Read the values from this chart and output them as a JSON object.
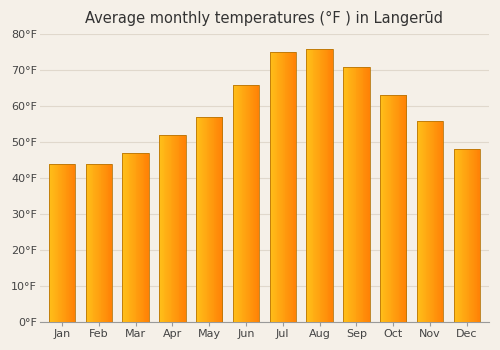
{
  "title": "Average monthly temperatures (°F ) in Langerūd",
  "months": [
    "Jan",
    "Feb",
    "Mar",
    "Apr",
    "May",
    "Jun",
    "Jul",
    "Aug",
    "Sep",
    "Oct",
    "Nov",
    "Dec"
  ],
  "values": [
    44,
    44,
    47,
    52,
    57,
    66,
    75,
    76,
    71,
    63,
    56,
    48
  ],
  "bar_color_left": "#FFD740",
  "bar_color_mid": "#FFA800",
  "bar_color_right": "#F08000",
  "bar_edge_color": "#B8760A",
  "ylim": [
    0,
    80
  ],
  "yticks": [
    0,
    10,
    20,
    30,
    40,
    50,
    60,
    70,
    80
  ],
  "ytick_labels": [
    "0°F",
    "10°F",
    "20°F",
    "30°F",
    "40°F",
    "50°F",
    "60°F",
    "70°F",
    "80°F"
  ],
  "background_color": "#F5F0E8",
  "plot_bg_color": "#F5F0E8",
  "grid_color": "#E0D8CC",
  "title_fontsize": 10.5,
  "tick_fontsize": 8,
  "title_color": "#333333",
  "tick_color": "#444444"
}
